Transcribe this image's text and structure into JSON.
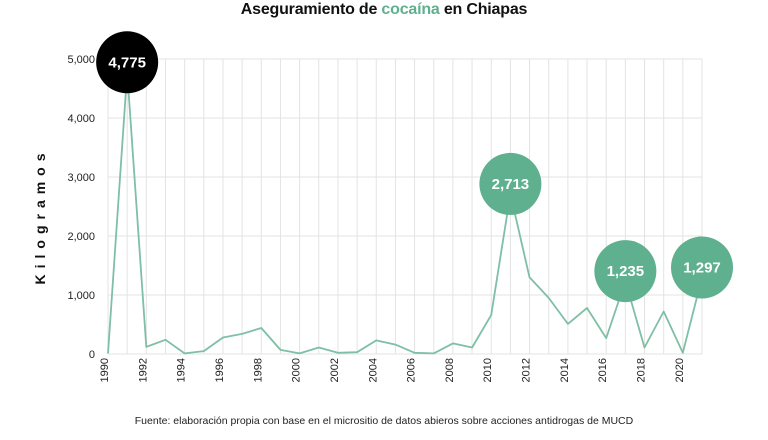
{
  "title": {
    "prefix": "Aseguramiento de ",
    "highlight": "cocaína",
    "suffix": " en Chiapas"
  },
  "source": "Fuente: elaboración propia con base en el micrositio de datos abieros sobre acciones antidrogas de MUCD",
  "colors": {
    "line": "#7fbfa5",
    "callout": "#5fb08e",
    "peak_callout": "#000000",
    "grid": "#e3e3e3"
  },
  "chart_data": {
    "type": "line",
    "ylabel": "Kilogramos",
    "xlabel": "",
    "ylim": [
      0,
      5000
    ],
    "yticks": [
      0,
      1000,
      2000,
      3000,
      4000,
      5000
    ],
    "ytick_labels": [
      "0",
      "1,000",
      "2,000",
      "3,000",
      "4,000",
      "5,000"
    ],
    "xlim": [
      1990,
      2021
    ],
    "xticks": [
      1990,
      1992,
      1994,
      1996,
      1998,
      2000,
      2002,
      2004,
      2006,
      2008,
      2010,
      2012,
      2014,
      2016,
      2018,
      2020
    ],
    "grid": true,
    "x": [
      1990,
      1991,
      1992,
      1993,
      1994,
      1995,
      1996,
      1997,
      1998,
      1999,
      2000,
      2001,
      2002,
      2003,
      2004,
      2005,
      2006,
      2007,
      2008,
      2009,
      2010,
      2011,
      2012,
      2013,
      2014,
      2015,
      2016,
      2017,
      2018,
      2019,
      2020,
      2021
    ],
    "values": [
      10,
      4775,
      120,
      240,
      10,
      50,
      280,
      340,
      440,
      70,
      10,
      110,
      20,
      30,
      230,
      160,
      20,
      10,
      180,
      110,
      660,
      2713,
      1300,
      950,
      510,
      780,
      270,
      1235,
      110,
      720,
      20,
      1297
    ],
    "annotations": [
      {
        "x": 1991,
        "label": "4,775",
        "style": "peak"
      },
      {
        "x": 2011,
        "label": "2,713",
        "style": "normal"
      },
      {
        "x": 2017,
        "label": "1,235",
        "style": "normal"
      },
      {
        "x": 2021,
        "label": "1,297",
        "style": "normal"
      }
    ]
  }
}
